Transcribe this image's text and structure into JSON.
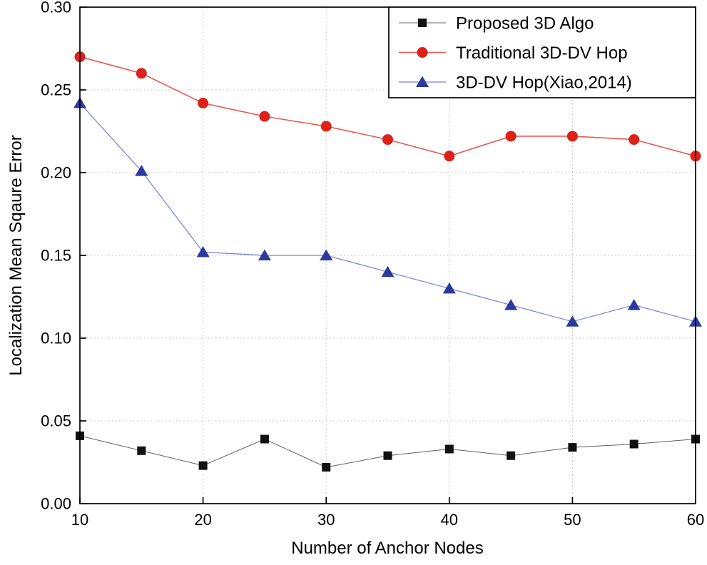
{
  "chart_data": {
    "type": "line",
    "title": "",
    "xlabel": "Number of  Anchor Nodes",
    "ylabel": "Localization Mean Sqaure Error",
    "x": [
      10,
      15,
      20,
      25,
      30,
      35,
      40,
      45,
      50,
      55,
      60
    ],
    "xlim": [
      10,
      60
    ],
    "ylim": [
      0,
      0.3
    ],
    "xticks": [
      10,
      20,
      30,
      40,
      50,
      60
    ],
    "xticklabels": [
      "10",
      "20",
      "30",
      "40",
      "50",
      "60"
    ],
    "yticks": [
      0,
      0.05,
      0.1,
      0.15,
      0.2,
      0.25,
      0.3
    ],
    "yticklabels": [
      "0.00",
      "0.05",
      "0.10",
      "0.15",
      "0.20",
      "0.25",
      "0.30"
    ],
    "grid": true,
    "grid_color": "#b8b8b8",
    "legend_position": "top-right",
    "series": [
      {
        "name": "Proposed 3D Algo",
        "marker": "square",
        "color": "#111111",
        "line_color": "#606060",
        "line_width": 1,
        "values": [
          0.041,
          0.032,
          0.023,
          0.039,
          0.022,
          0.029,
          0.033,
          0.029,
          0.034,
          0.036,
          0.039
        ]
      },
      {
        "name": "Traditional 3D-DV Hop",
        "marker": "circle",
        "color": "#dd2018",
        "line_color": "#e85a53",
        "line_width": 1.6,
        "values": [
          0.27,
          0.26,
          0.242,
          0.234,
          0.228,
          0.22,
          0.21,
          0.222,
          0.222,
          0.22,
          0.21
        ]
      },
      {
        "name": "3D-DV Hop(Xiao,2014)",
        "marker": "triangle",
        "color": "#2c3a9e",
        "line_color": "#7680d2",
        "line_width": 1.2,
        "values": [
          0.242,
          0.201,
          0.152,
          0.15,
          0.15,
          0.14,
          0.13,
          0.12,
          0.11,
          0.12,
          0.11
        ]
      }
    ]
  }
}
